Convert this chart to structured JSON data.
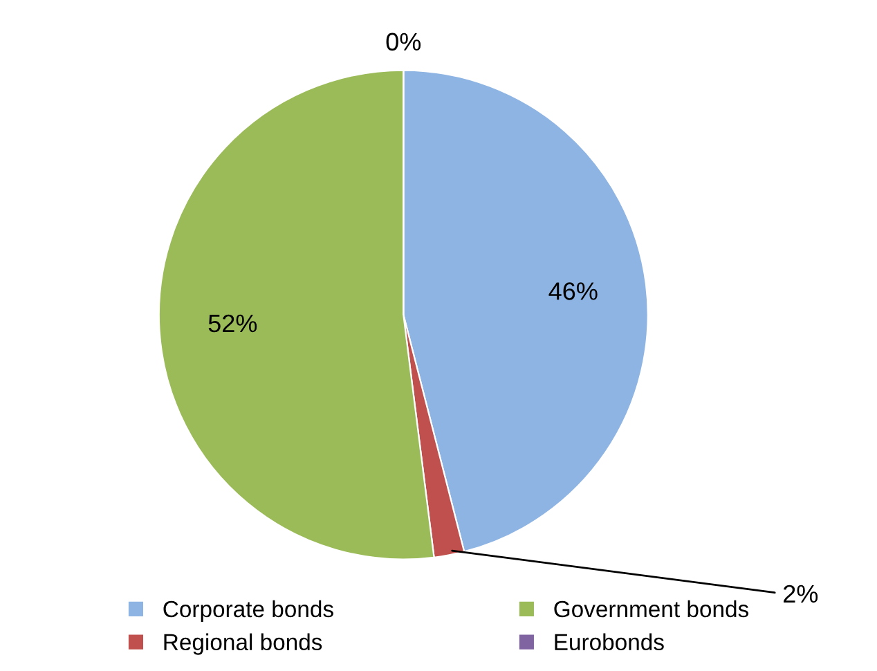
{
  "chart_data": {
    "type": "pie",
    "categories": [
      "Corporate bonds",
      "Regional bonds",
      "Government bonds",
      "Eurobonds"
    ],
    "values": [
      46,
      2,
      52,
      0
    ],
    "colors": [
      "#8eb4e3",
      "#c0504d",
      "#9bbb59",
      "#8064a2"
    ],
    "value_labels": [
      "46%",
      "2%",
      "52%",
      "0%"
    ],
    "legend": "bottom"
  }
}
